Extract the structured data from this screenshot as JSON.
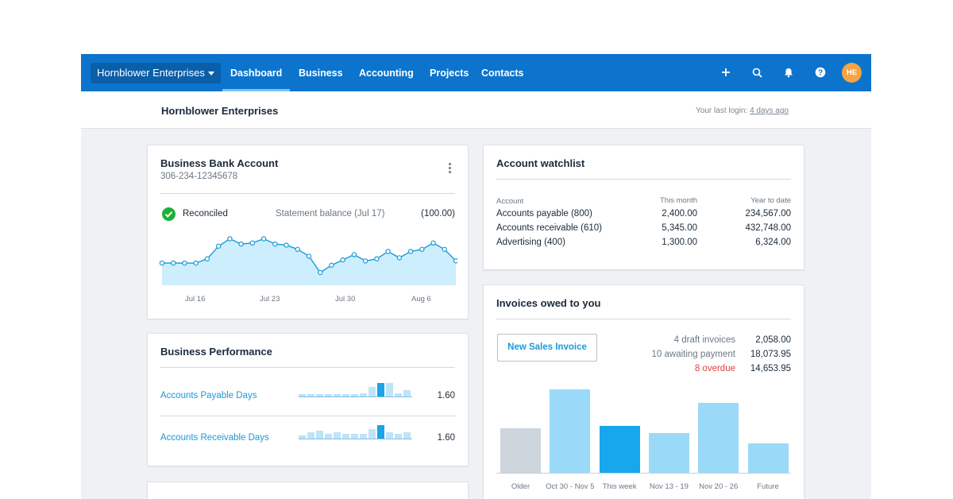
{
  "nav": {
    "org_name": "Hornblower Enterprises",
    "tabs": [
      "Dashboard",
      "Business",
      "Accounting",
      "Projects",
      "Contacts"
    ],
    "active_tab": "Dashboard",
    "avatar_initials": "HE",
    "icons": [
      "plus-icon",
      "search-icon",
      "bell-icon",
      "help-icon"
    ]
  },
  "subheader": {
    "title": "Hornblower Enterprises",
    "last_login_prefix": "Your last login:",
    "last_login_value": "4 days ago"
  },
  "bank": {
    "title": "Business Bank Account",
    "account_number": "306-234-12345678",
    "status": "Reconciled",
    "statement_label": "Statement balance (Jul 17)",
    "statement_value": "(100.00)",
    "x_ticks": [
      "Jul 16",
      "Jul 23",
      "Jul 30",
      "Aug 6"
    ],
    "balance_series": [
      0.42,
      0.42,
      0.42,
      0.42,
      0.5,
      0.74,
      0.88,
      0.78,
      0.8,
      0.88,
      0.78,
      0.76,
      0.68,
      0.55,
      0.24,
      0.38,
      0.48,
      0.58,
      0.46,
      0.5,
      0.64,
      0.52,
      0.64,
      0.68,
      0.8,
      0.68,
      0.46
    ]
  },
  "performance": {
    "title": "Business Performance",
    "rows": [
      {
        "label": "Accounts Payable Days",
        "value": "1.60",
        "bars": [
          0.2,
          0.2,
          0.2,
          0.2,
          0.2,
          0.2,
          0.2,
          0.3,
          0.7,
          1.0,
          1.0,
          0.3,
          0.5
        ],
        "highlight": 9
      },
      {
        "label": "Accounts Receivable Days",
        "value": "1.60",
        "bars": [
          0.3,
          0.5,
          0.6,
          0.4,
          0.5,
          0.4,
          0.4,
          0.4,
          0.7,
          1.0,
          0.5,
          0.4,
          0.5
        ],
        "highlight": 9
      }
    ]
  },
  "watchlist": {
    "title": "Account watchlist",
    "headers": [
      "Account",
      "This month",
      "Year to date"
    ],
    "rows": [
      {
        "account": "Accounts payable (800)",
        "month": "2,400.00",
        "ytd": "234,567.00"
      },
      {
        "account": "Accounts receivable (610)",
        "month": "5,345.00",
        "ytd": "432,748.00"
      },
      {
        "account": "Advertising (400)",
        "month": "1,300.00",
        "ytd": "6,324.00"
      }
    ]
  },
  "invoices": {
    "title": "Invoices owed to you",
    "new_button": "New Sales Invoice",
    "summary": [
      {
        "label": "4 draft invoices",
        "value": "2,058.00",
        "alert": false
      },
      {
        "label": "10 awaiting payment",
        "value": "18,073.95",
        "alert": false
      },
      {
        "label": "8 overdue",
        "value": "14,653.95",
        "alert": true
      }
    ],
    "chart_data": {
      "type": "bar",
      "categories": [
        "Older",
        "Oct 30 - Nov 5",
        "This week",
        "Nov 13 - 19",
        "Nov 20 - 26",
        "Future"
      ],
      "values": [
        55,
        104,
        58,
        50,
        87,
        37
      ],
      "highlight_index": 2,
      "colors": {
        "older": "#cdd5dd",
        "normal": "#9bd9f8",
        "highlight": "#16a7ec"
      }
    }
  },
  "colors": {
    "brand": "#0c74cc",
    "link": "#1a9ad8",
    "overdue": "#e0423d",
    "success": "#1bb13a"
  }
}
